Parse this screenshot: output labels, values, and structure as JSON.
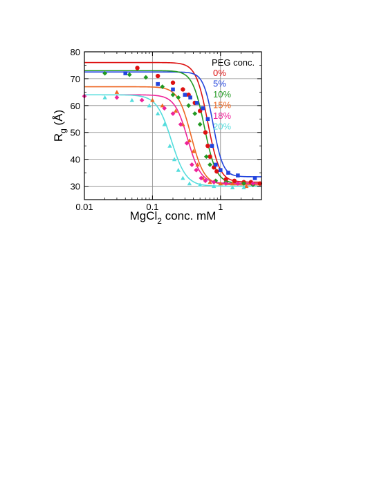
{
  "chart_data": {
    "type": "scatter",
    "xlabel": "MgCl",
    "xlabel_sub": "2",
    "xlabel_tail": " conc. mM",
    "ylabel": "R",
    "ylabel_sub": "g",
    "ylabel_tail": " (Å)",
    "x_scale": "log",
    "xlim": [
      0.01,
      4
    ],
    "ylim": [
      25,
      80
    ],
    "x_ticks": [
      {
        "value": 0.01,
        "label": "0.01"
      },
      {
        "value": 0.1,
        "label": "0.1"
      },
      {
        "value": 1,
        "label": "1"
      }
    ],
    "y_ticks": [
      {
        "value": 30,
        "label": "30"
      },
      {
        "value": 40,
        "label": "40"
      },
      {
        "value": 50,
        "label": "50"
      },
      {
        "value": 60,
        "label": "60"
      },
      {
        "value": 70,
        "label": "70"
      },
      {
        "value": 80,
        "label": "80"
      }
    ],
    "grid": true,
    "legend": {
      "title": "PEG conc.",
      "placement": "top-right"
    },
    "series": [
      {
        "name": "0%",
        "color": "#dd1111",
        "marker": "circle",
        "points": [
          [
            0.06,
            74
          ],
          [
            0.12,
            71
          ],
          [
            0.2,
            68.5
          ],
          [
            0.28,
            66
          ],
          [
            0.34,
            64
          ],
          [
            0.42,
            61
          ],
          [
            0.5,
            58
          ],
          [
            0.6,
            50
          ],
          [
            0.65,
            45
          ],
          [
            0.7,
            41
          ],
          [
            0.8,
            37
          ],
          [
            0.88,
            35.5
          ],
          [
            1.2,
            32.5
          ],
          [
            1.6,
            32
          ],
          [
            2.2,
            31.5
          ],
          [
            2.8,
            31.5
          ],
          [
            3.8,
            31
          ]
        ],
        "fit": {
          "top": 76,
          "bottom": 31.5,
          "x0": 0.65,
          "n": 5
        }
      },
      {
        "name": "5%",
        "color": "#2244dd",
        "marker": "square",
        "points": [
          [
            0.04,
            72
          ],
          [
            0.12,
            68
          ],
          [
            0.2,
            66
          ],
          [
            0.3,
            64
          ],
          [
            0.36,
            63
          ],
          [
            0.45,
            61
          ],
          [
            0.55,
            59
          ],
          [
            0.65,
            55
          ],
          [
            0.75,
            45
          ],
          [
            0.85,
            38
          ],
          [
            1.0,
            36
          ],
          [
            1.3,
            35
          ],
          [
            1.8,
            34
          ],
          [
            3.2,
            33
          ]
        ],
        "fit": {
          "top": 72.5,
          "bottom": 33.5,
          "x0": 0.78,
          "n": 6
        }
      },
      {
        "name": "10%",
        "color": "#229922",
        "marker": "diamond",
        "points": [
          [
            0.02,
            72
          ],
          [
            0.046,
            71.5
          ],
          [
            0.08,
            70.5
          ],
          [
            0.14,
            67
          ],
          [
            0.2,
            64
          ],
          [
            0.24,
            63
          ],
          [
            0.34,
            60
          ],
          [
            0.42,
            57
          ],
          [
            0.5,
            53
          ],
          [
            0.62,
            41
          ],
          [
            0.7,
            38
          ],
          [
            0.85,
            32
          ],
          [
            1.2,
            31.5
          ],
          [
            2.2,
            31
          ],
          [
            3,
            30.5
          ]
        ],
        "fit": {
          "top": 73,
          "bottom": 31,
          "x0": 0.58,
          "n": 5
        }
      },
      {
        "name": "15%",
        "color": "#ee6622",
        "marker": "triangle",
        "points": [
          [
            0.03,
            65
          ],
          [
            0.1,
            62
          ],
          [
            0.14,
            60
          ],
          [
            0.22,
            58
          ],
          [
            0.28,
            53
          ],
          [
            0.35,
            47
          ],
          [
            0.4,
            43
          ],
          [
            0.46,
            38
          ],
          [
            0.55,
            33
          ],
          [
            0.7,
            31.5
          ],
          [
            1.0,
            31
          ],
          [
            1.5,
            31
          ],
          [
            2.4,
            30
          ]
        ],
        "fit": {
          "top": 67,
          "bottom": 30.5,
          "x0": 0.37,
          "n": 4.5
        }
      },
      {
        "name": "18%",
        "color": "#ee2299",
        "marker": "diamond",
        "points": [
          [
            0.01,
            63.5
          ],
          [
            0.03,
            63
          ],
          [
            0.07,
            62
          ],
          [
            0.15,
            59
          ],
          [
            0.2,
            57
          ],
          [
            0.26,
            53
          ],
          [
            0.32,
            46
          ],
          [
            0.38,
            38
          ],
          [
            0.44,
            36
          ],
          [
            0.52,
            33
          ],
          [
            0.6,
            32
          ],
          [
            0.8,
            31.5
          ],
          [
            1.2,
            31
          ],
          [
            1.8,
            31
          ],
          [
            3,
            31
          ]
        ],
        "fit": {
          "top": 64,
          "bottom": 31,
          "x0": 0.33,
          "n": 4.5
        }
      },
      {
        "name": "20%",
        "color": "#55dddd",
        "marker": "triangle",
        "points": [
          [
            0.02,
            63
          ],
          [
            0.05,
            62
          ],
          [
            0.09,
            60
          ],
          [
            0.12,
            57
          ],
          [
            0.15,
            53
          ],
          [
            0.18,
            45
          ],
          [
            0.21,
            40
          ],
          [
            0.24,
            36
          ],
          [
            0.28,
            33
          ],
          [
            0.35,
            31
          ],
          [
            0.5,
            30.5
          ],
          [
            0.8,
            30
          ],
          [
            1.5,
            29.5
          ],
          [
            2.2,
            29.5
          ]
        ],
        "fit": {
          "top": 64,
          "bottom": 30,
          "x0": 0.19,
          "n": 4
        }
      }
    ]
  }
}
